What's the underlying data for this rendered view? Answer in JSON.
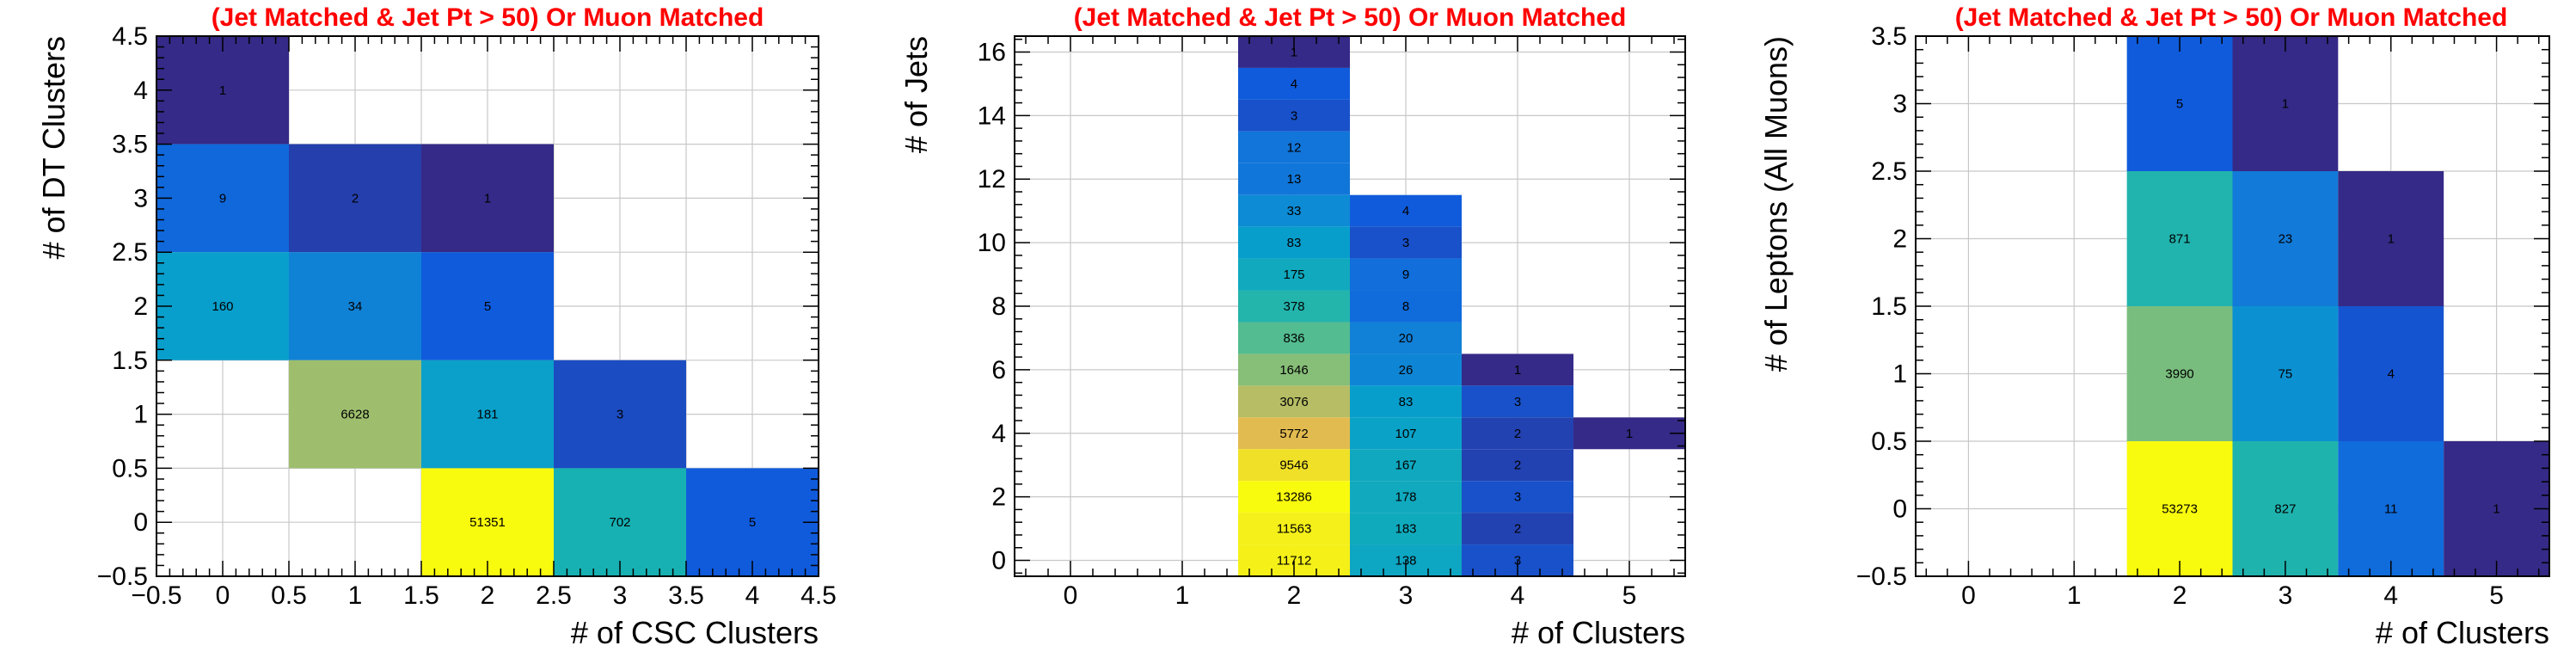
{
  "chart_data": [
    {
      "type": "heatmap",
      "title": "(Jet Matched & Jet Pt > 50) Or Muon Matched",
      "xlabel": "# of CSC Clusters",
      "ylabel": "# of DT Clusters",
      "xlim": [
        -0.5,
        4.5
      ],
      "ylim": [
        -0.5,
        4.5
      ],
      "xticks": [
        -0.5,
        0,
        0.5,
        1,
        1.5,
        2,
        2.5,
        3,
        3.5,
        4,
        4.5
      ],
      "xtick_labels": [
        "−0.5",
        "0",
        "0.5",
        "1",
        "1.5",
        "2",
        "2.5",
        "3",
        "3.5",
        "4",
        "4.5"
      ],
      "yticks": [
        -0.5,
        0,
        0.5,
        1,
        1.5,
        2,
        2.5,
        3,
        3.5,
        4,
        4.5
      ],
      "ytick_labels": [
        "−0.5",
        "0",
        "0.5",
        "1",
        "1.5",
        "2",
        "2.5",
        "3",
        "3.5",
        "4",
        "4.5"
      ],
      "xbin": 1,
      "ybin": 1,
      "logz": true,
      "grid": true,
      "cells": [
        {
          "x": 0,
          "y": 4,
          "value": 1
        },
        {
          "x": 0,
          "y": 3,
          "value": 9
        },
        {
          "x": 1,
          "y": 3,
          "value": 2
        },
        {
          "x": 2,
          "y": 3,
          "value": 1
        },
        {
          "x": 0,
          "y": 2,
          "value": 160
        },
        {
          "x": 1,
          "y": 2,
          "value": 34
        },
        {
          "x": 2,
          "y": 2,
          "value": 5
        },
        {
          "x": 1,
          "y": 1,
          "value": 6628
        },
        {
          "x": 2,
          "y": 1,
          "value": 181
        },
        {
          "x": 3,
          "y": 1,
          "value": 3
        },
        {
          "x": 2,
          "y": 0,
          "value": 51351
        },
        {
          "x": 3,
          "y": 0,
          "value": 702
        },
        {
          "x": 4,
          "y": 0,
          "value": 5
        }
      ]
    },
    {
      "type": "heatmap",
      "title": "(Jet Matched & Jet Pt > 50) Or Muon Matched",
      "xlabel": "# of Clusters",
      "ylabel": "# of Jets",
      "xlim": [
        -0.5,
        5.5
      ],
      "ylim": [
        -0.5,
        16.5
      ],
      "xticks": [
        0,
        1,
        2,
        3,
        4,
        5
      ],
      "xtick_labels": [
        "0",
        "1",
        "2",
        "3",
        "4",
        "5"
      ],
      "yticks": [
        0,
        2,
        4,
        6,
        8,
        10,
        12,
        14,
        16
      ],
      "ytick_labels": [
        "0",
        "2",
        "4",
        "6",
        "8",
        "10",
        "12",
        "14",
        "16"
      ],
      "xbin": 1,
      "ybin": 1,
      "logz": true,
      "grid": true,
      "cells": [
        {
          "x": 2,
          "y": 16,
          "value": 1
        },
        {
          "x": 2,
          "y": 15,
          "value": 4
        },
        {
          "x": 2,
          "y": 14,
          "value": 3
        },
        {
          "x": 2,
          "y": 13,
          "value": 12
        },
        {
          "x": 2,
          "y": 12,
          "value": 13
        },
        {
          "x": 2,
          "y": 11,
          "value": 33
        },
        {
          "x": 2,
          "y": 10,
          "value": 83
        },
        {
          "x": 2,
          "y": 9,
          "value": 175
        },
        {
          "x": 2,
          "y": 8,
          "value": 378
        },
        {
          "x": 2,
          "y": 7,
          "value": 836
        },
        {
          "x": 2,
          "y": 6,
          "value": 1646
        },
        {
          "x": 2,
          "y": 5,
          "value": 3076
        },
        {
          "x": 2,
          "y": 4,
          "value": 5772
        },
        {
          "x": 2,
          "y": 3,
          "value": 9546
        },
        {
          "x": 2,
          "y": 2,
          "value": 13286
        },
        {
          "x": 2,
          "y": 1,
          "value": 11563
        },
        {
          "x": 2,
          "y": 0,
          "value": 11712
        },
        {
          "x": 3,
          "y": 11,
          "value": 4
        },
        {
          "x": 3,
          "y": 10,
          "value": 3
        },
        {
          "x": 3,
          "y": 9,
          "value": 9
        },
        {
          "x": 3,
          "y": 8,
          "value": 8
        },
        {
          "x": 3,
          "y": 7,
          "value": 20
        },
        {
          "x": 3,
          "y": 6,
          "value": 26
        },
        {
          "x": 3,
          "y": 5,
          "value": 83
        },
        {
          "x": 3,
          "y": 4,
          "value": 107
        },
        {
          "x": 3,
          "y": 3,
          "value": 167
        },
        {
          "x": 3,
          "y": 2,
          "value": 178
        },
        {
          "x": 3,
          "y": 1,
          "value": 183
        },
        {
          "x": 3,
          "y": 0,
          "value": 138
        },
        {
          "x": 4,
          "y": 6,
          "value": 1
        },
        {
          "x": 4,
          "y": 5,
          "value": 3
        },
        {
          "x": 4,
          "y": 4,
          "value": 2
        },
        {
          "x": 4,
          "y": 3,
          "value": 2
        },
        {
          "x": 4,
          "y": 2,
          "value": 3
        },
        {
          "x": 4,
          "y": 1,
          "value": 2
        },
        {
          "x": 4,
          "y": 0,
          "value": 3
        },
        {
          "x": 5,
          "y": 4,
          "value": 1
        }
      ]
    },
    {
      "type": "heatmap",
      "title": "(Jet Matched & Jet Pt > 50) Or Muon Matched",
      "xlabel": "# of Clusters",
      "ylabel": "# of Leptons (All Muons)",
      "xlim": [
        -0.5,
        5.5
      ],
      "ylim": [
        -0.5,
        3.5
      ],
      "xticks": [
        0,
        1,
        2,
        3,
        4,
        5
      ],
      "xtick_labels": [
        "0",
        "1",
        "2",
        "3",
        "4",
        "5"
      ],
      "yticks": [
        -0.5,
        0,
        0.5,
        1,
        1.5,
        2,
        2.5,
        3,
        3.5
      ],
      "ytick_labels": [
        "−0.5",
        "0",
        "0.5",
        "1",
        "1.5",
        "2",
        "2.5",
        "3",
        "3.5"
      ],
      "xbin": 1,
      "ybin": 1,
      "logz": true,
      "grid": true,
      "cells": [
        {
          "x": 2,
          "y": 3,
          "value": 5
        },
        {
          "x": 3,
          "y": 3,
          "value": 1
        },
        {
          "x": 2,
          "y": 2,
          "value": 871
        },
        {
          "x": 3,
          "y": 2,
          "value": 23
        },
        {
          "x": 4,
          "y": 2,
          "value": 1
        },
        {
          "x": 2,
          "y": 1,
          "value": 3990
        },
        {
          "x": 3,
          "y": 1,
          "value": 75
        },
        {
          "x": 4,
          "y": 1,
          "value": 4
        },
        {
          "x": 2,
          "y": 0,
          "value": 53273
        },
        {
          "x": 3,
          "y": 0,
          "value": 827
        },
        {
          "x": 4,
          "y": 0,
          "value": 11
        },
        {
          "x": 5,
          "y": 0,
          "value": 1
        }
      ]
    }
  ]
}
